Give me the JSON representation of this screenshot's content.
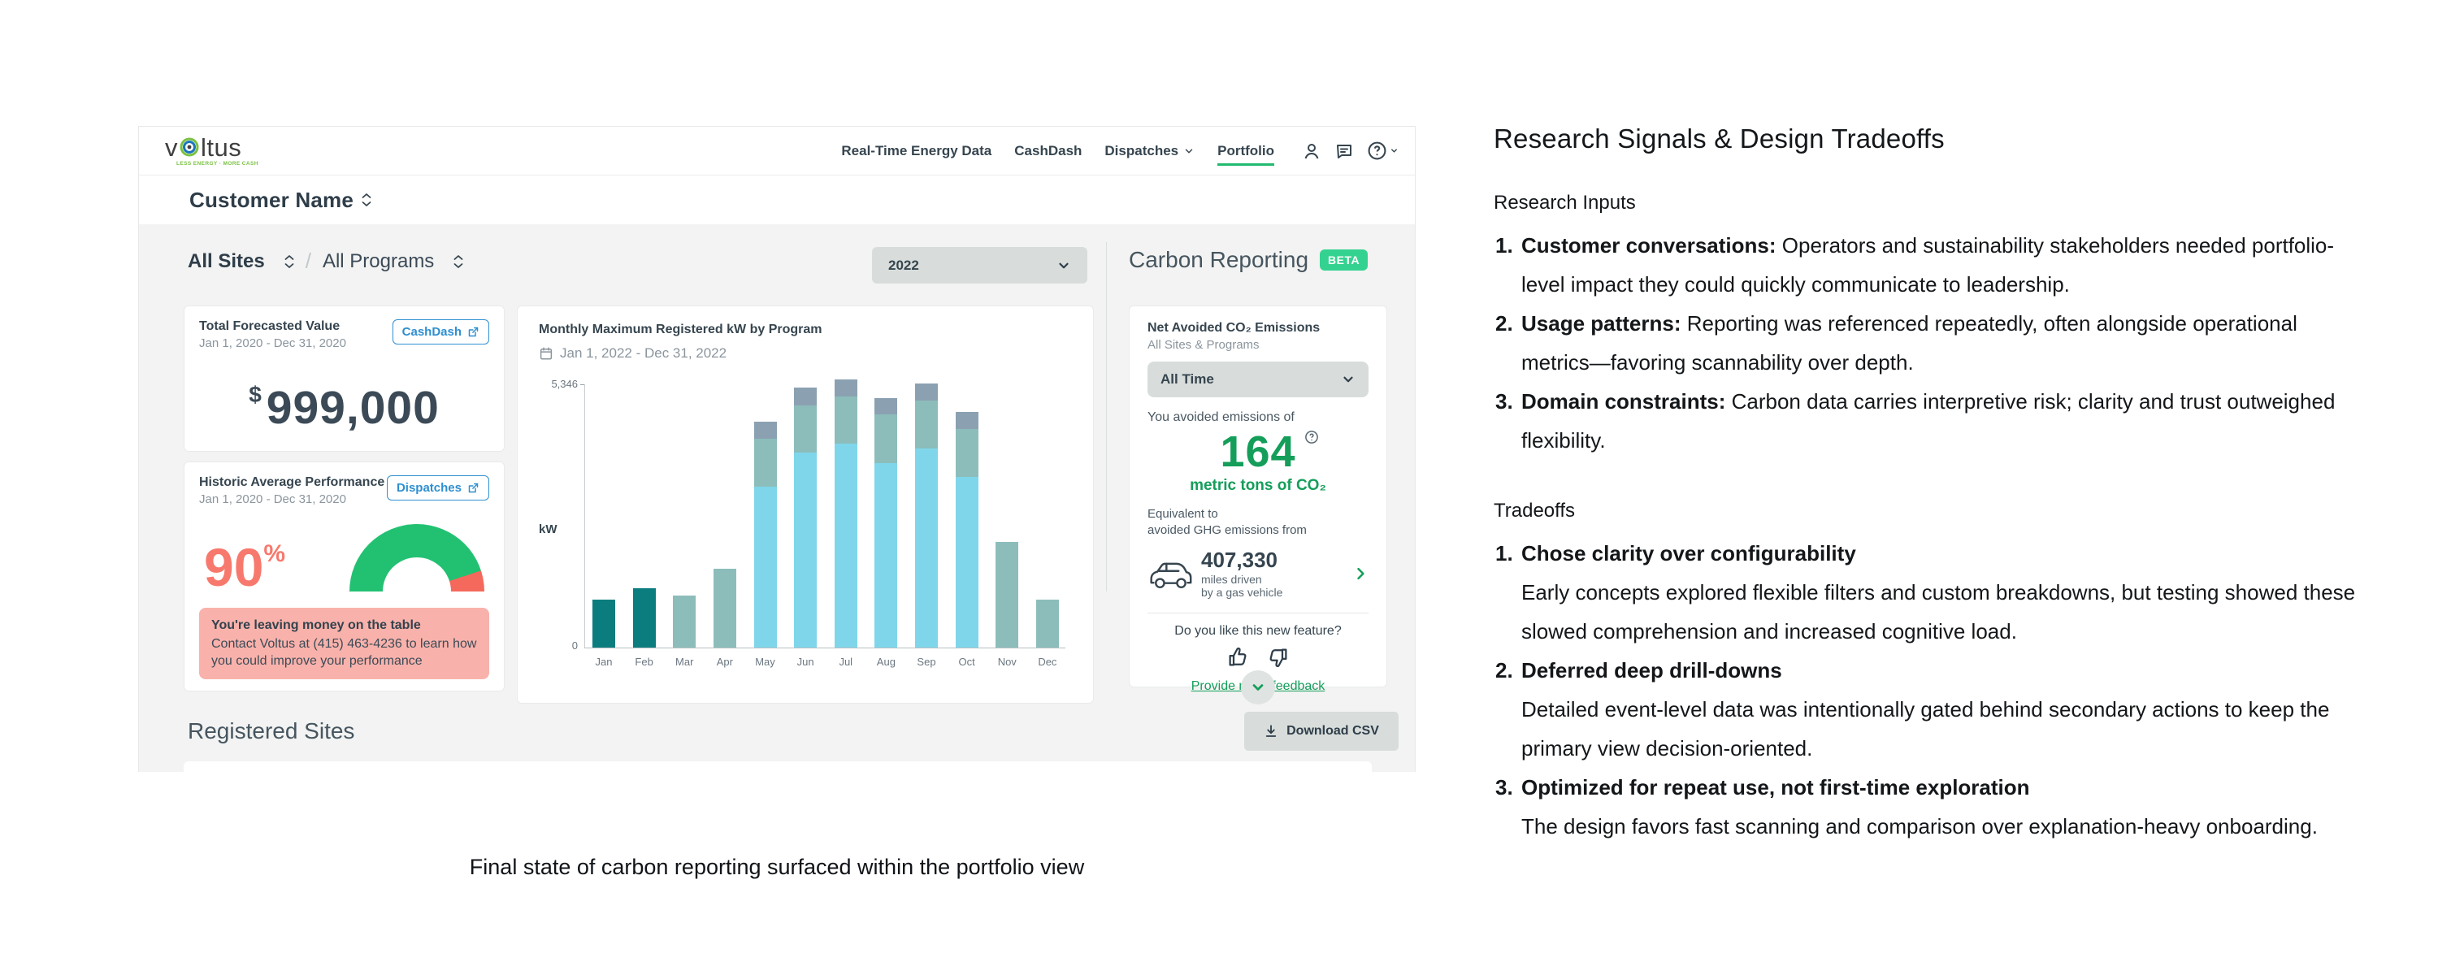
{
  "colors": {
    "accent_green": "#21ba6f",
    "beta_green": "#34d290",
    "value_green": "#149e5a",
    "coral": "#f7796d",
    "gauge_green": "#22c172",
    "gauge_red": "#f4695c",
    "alert_pink": "#f8b2ab",
    "link_blue": "#2e8fd0",
    "panel_gray": "#f2f3f2",
    "pill_gray": "#d8dddb",
    "bar_dark_teal": "#0c7d7f",
    "bar_cyan": "#7fd6ea",
    "bar_sage": "#8cbdbb",
    "bar_slate": "#8ba1b1"
  },
  "dashboard": {
    "header": {
      "brand_left": "v",
      "brand_right": "ltus",
      "tagline": "LESS ENERGY · MORE CASH",
      "nav": [
        {
          "label": "Real-Time Energy Data"
        },
        {
          "label": "CashDash"
        },
        {
          "label": "Dispatches"
        },
        {
          "label": "Portfolio"
        }
      ]
    },
    "customer_name": "Customer Name",
    "filters": {
      "sites": "All Sites",
      "slash": "/",
      "programs": "All Programs",
      "year": "2022"
    },
    "forecast_card": {
      "title": "Total Forecasted Value",
      "date_range": "Jan 1, 2020 - Dec 31, 2020",
      "link": "CashDash",
      "currency": "$",
      "value": "999,000"
    },
    "performance_card": {
      "title": "Historic Average Performance",
      "date_range": "Jan 1, 2020 - Dec 31, 2020",
      "link": "Dispatches",
      "value": "90",
      "unit": "%",
      "gauge_percent": 90,
      "alert_title": "You're leaving money on the table",
      "alert_body": "Contact Voltus at (415) 463-4236 to learn how you could improve your performance"
    },
    "carbon": {
      "heading": "Carbon Reporting",
      "beta_label": "BETA",
      "card": {
        "title": "Net Avoided CO₂ Emissions",
        "subtitle": "All Sites & Programs",
        "time_filter": "All Time",
        "intro": "You avoided emissions of",
        "value": "164",
        "value_unit": "metric tons of CO₂",
        "equivalent_line1": "Equivalent to",
        "equivalent_line2": "avoided GHG emissions from",
        "miles": "407,330",
        "miles_line1": "miles driven",
        "miles_line2": "by a gas vehicle",
        "feedback_prompt": "Do you like this new feature?",
        "feedback_link": "Provide more feedback"
      }
    },
    "sites": {
      "title": "Registered Sites",
      "download": "Download CSV"
    }
  },
  "chart_data": {
    "type": "bar",
    "stacked": true,
    "title": "Monthly Maximum Registered kW by Program",
    "date_range": "Jan 1, 2022 - Dec 31, 2022",
    "ylabel": "kW",
    "ymax": 5346,
    "y_top_label": "5,346",
    "y_bottom_label": "0",
    "legend": "none",
    "categories": [
      "Jan",
      "Feb",
      "Mar",
      "Apr",
      "May",
      "Jun",
      "Jul",
      "Aug",
      "Sep",
      "Oct",
      "Nov",
      "Dec"
    ],
    "series": [
      {
        "name": "program-dark-teal",
        "color": "#0c7d7f",
        "values": [
          960,
          1190,
          0,
          0,
          0,
          0,
          0,
          0,
          0,
          0,
          0,
          0
        ]
      },
      {
        "name": "program-cyan",
        "color": "#7fd6ea",
        "values": [
          0,
          0,
          0,
          0,
          3210,
          3880,
          4060,
          3680,
          3975,
          3400,
          0,
          0
        ]
      },
      {
        "name": "program-sage",
        "color": "#8cbdbb",
        "values": [
          0,
          0,
          1040,
          1570,
          960,
          940,
          940,
          965,
          955,
          950,
          2110,
          960
        ]
      },
      {
        "name": "program-slate",
        "color": "#8ba1b1",
        "values": [
          0,
          0,
          0,
          0,
          340,
          350,
          346,
          330,
          345,
          340,
          0,
          0
        ]
      }
    ],
    "totals": [
      960,
      1190,
      1040,
      1570,
      4510,
      5170,
      5346,
      4975,
      5275,
      4690,
      2110,
      960
    ]
  },
  "caption": "Final state of carbon reporting surfaced within the portfolio view",
  "article": {
    "title": "Research Signals & Design Tradeoffs",
    "sections": [
      {
        "heading": "Research Inputs",
        "items": [
          {
            "number": "1.",
            "lead": "Customer conversations:",
            "text": "Operators and sustainability stakeholders needed portfolio-level impact they could quickly communicate to leadership."
          },
          {
            "number": "2.",
            "lead": "Usage patterns:",
            "text": "Reporting was referenced repeatedly, often alongside operational metrics—favoring scannability over depth."
          },
          {
            "number": "3.",
            "lead": "Domain constraints:",
            "text": "Carbon data carries interpretive risk; clarity and trust outweighed flexibility."
          }
        ]
      },
      {
        "heading": "Tradeoffs",
        "items": [
          {
            "number": "1.",
            "lead": "Chose clarity over configurability",
            "text": "Early concepts explored flexible filters and custom breakdowns, but testing showed these slowed comprehension and increased cognitive load."
          },
          {
            "number": "2.",
            "lead": "Deferred deep drill-downs",
            "text": "Detailed event-level data was intentionally gated behind secondary actions to keep the primary view decision-oriented."
          },
          {
            "number": "3.",
            "lead": "Optimized for repeat use, not first-time exploration",
            "text": "The design favors fast scanning and comparison over explanation-heavy onboarding."
          }
        ]
      }
    ]
  }
}
